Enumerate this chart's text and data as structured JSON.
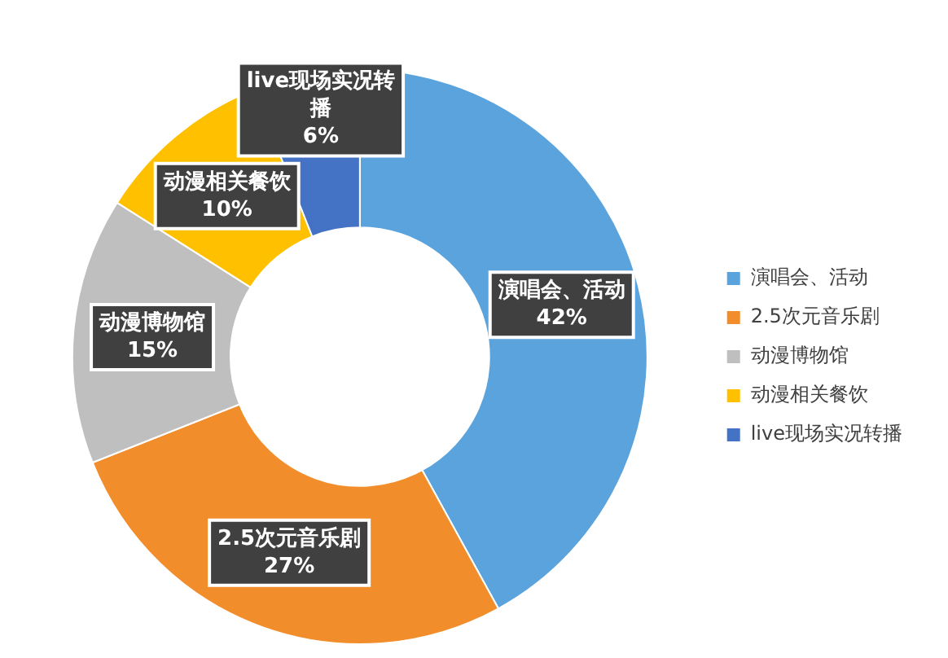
{
  "chart_data": {
    "type": "donut",
    "categories": [
      "演唱会、活动",
      "2.5次元音乐剧",
      "动漫博物馆",
      "动漫相关餐饮",
      "live现场实况转播"
    ],
    "values": [
      42,
      27,
      15,
      10,
      6
    ],
    "colors": [
      "#5ba3dc",
      "#f28d2c",
      "#bfbfbf",
      "#ffc000",
      "#4472c4"
    ],
    "value_labels": [
      "42%",
      "27%",
      "15%",
      "10%",
      "6%"
    ],
    "legend": "right"
  }
}
